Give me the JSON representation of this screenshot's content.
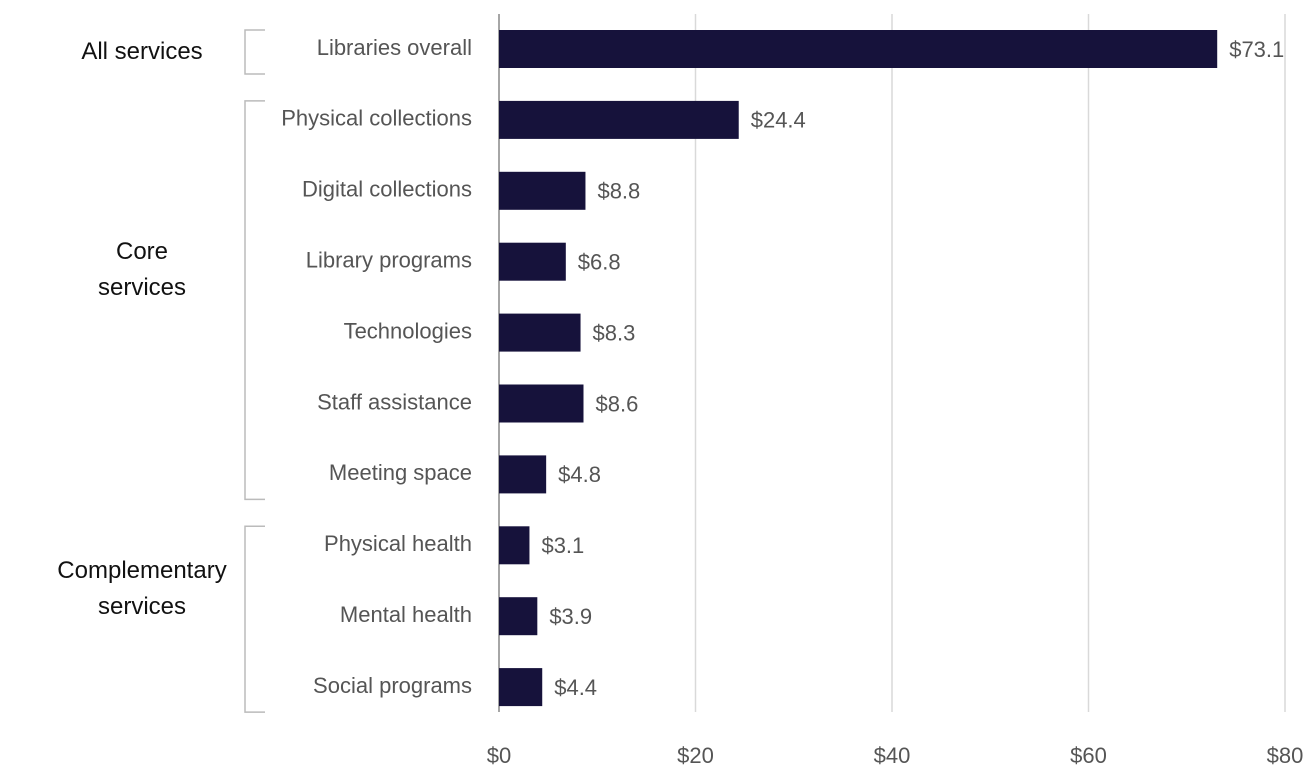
{
  "chart_data": {
    "type": "bar",
    "orientation": "horizontal",
    "color": "#16123b",
    "groups": [
      {
        "label": "All services",
        "categories": [
          "Libraries overall"
        ],
        "values": [
          73.1
        ],
        "value_labels": [
          "$73.1"
        ]
      },
      {
        "label": "Core services",
        "categories": [
          "Physical collections",
          "Digital collections",
          "Library programs",
          "Technologies",
          "Staff assistance",
          "Meeting space"
        ],
        "values": [
          24.4,
          8.8,
          6.8,
          8.3,
          8.6,
          4.8
        ],
        "value_labels": [
          "$24.4",
          "$8.8",
          "$6.8",
          "$8.3",
          "$8.6",
          "$4.8"
        ]
      },
      {
        "label": "Complementary services",
        "categories": [
          "Physical health",
          "Mental health",
          "Social programs"
        ],
        "values": [
          3.1,
          3.9,
          4.4
        ],
        "value_labels": [
          "$3.1",
          "$3.9",
          "$4.4"
        ]
      }
    ],
    "xlim": [
      0,
      80
    ],
    "xticks": [
      {
        "value": 0,
        "label": "$0"
      },
      {
        "value": 20,
        "label": "$20"
      },
      {
        "value": 40,
        "label": "$40"
      },
      {
        "value": 60,
        "label": "$60"
      },
      {
        "value": 80,
        "label": "$80"
      }
    ],
    "grid": true
  }
}
